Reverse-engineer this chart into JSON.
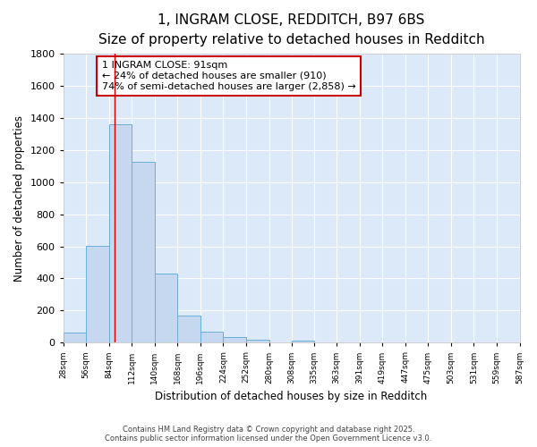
{
  "title": "1, INGRAM CLOSE, REDDITCH, B97 6BS",
  "subtitle": "Size of property relative to detached houses in Redditch",
  "xlabel": "Distribution of detached houses by size in Redditch",
  "ylabel": "Number of detached properties",
  "bar_edges": [
    28,
    56,
    84,
    112,
    140,
    168,
    196,
    224,
    252,
    280,
    308,
    335,
    363,
    391,
    419,
    447,
    475,
    503,
    531,
    559,
    587
  ],
  "bar_heights": [
    60,
    605,
    1360,
    1130,
    430,
    170,
    70,
    35,
    20,
    0,
    15,
    0,
    0,
    0,
    0,
    0,
    0,
    0,
    0,
    0
  ],
  "bar_color": "#c5d8f0",
  "bar_edge_color": "#6aaed6",
  "vline_x": 91,
  "vline_color": "#cc0000",
  "ylim": [
    0,
    1800
  ],
  "xlim": [
    28,
    587
  ],
  "plot_bg_color": "#dce9f8",
  "fig_bg_color": "#ffffff",
  "annotation_text": "1 INGRAM CLOSE: 91sqm\n← 24% of detached houses are smaller (910)\n74% of semi-detached houses are larger (2,858) →",
  "footer_line1": "Contains HM Land Registry data © Crown copyright and database right 2025.",
  "footer_line2": "Contains public sector information licensed under the Open Government Licence v3.0.",
  "title_fontsize": 11,
  "subtitle_fontsize": 9.5,
  "tick_labels": [
    "28sqm",
    "56sqm",
    "84sqm",
    "112sqm",
    "140sqm",
    "168sqm",
    "196sqm",
    "224sqm",
    "252sqm",
    "280sqm",
    "308sqm",
    "335sqm",
    "363sqm",
    "391sqm",
    "419sqm",
    "447sqm",
    "475sqm",
    "503sqm",
    "531sqm",
    "559sqm",
    "587sqm"
  ],
  "yticks": [
    0,
    200,
    400,
    600,
    800,
    1000,
    1200,
    1400,
    1600,
    1800
  ]
}
